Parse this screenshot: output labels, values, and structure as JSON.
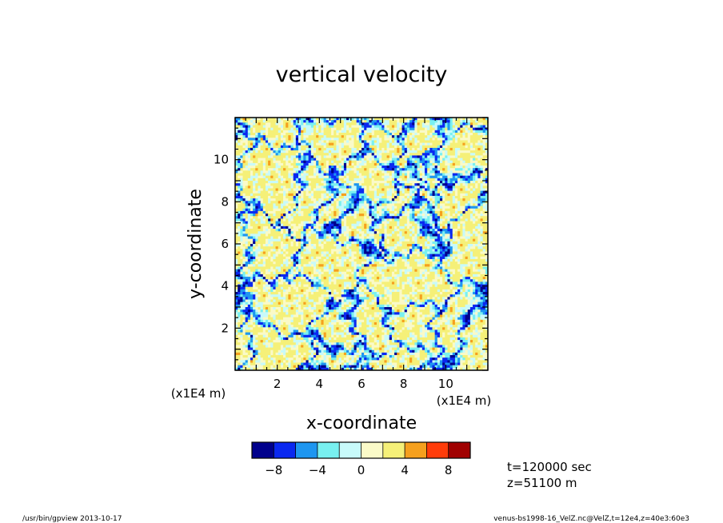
{
  "chart_data": {
    "type": "heatmap",
    "title": "vertical velocity",
    "xlabel": "x-coordinate",
    "ylabel": "y-coordinate",
    "xlim": [
      0,
      12
    ],
    "ylim": [
      0,
      12
    ],
    "x_ticks": [
      2,
      4,
      6,
      8,
      10
    ],
    "y_ticks": [
      2,
      4,
      6,
      8,
      10
    ],
    "x_unit": "(x1E4 m)",
    "y_unit": "(x1E4 m)",
    "colorbar": {
      "levels": [
        -10,
        -8,
        -6,
        -4,
        -2,
        0,
        2,
        4,
        6,
        8,
        10
      ],
      "tick_labels": [
        {
          "value": -8,
          "label": "−8"
        },
        {
          "value": -4,
          "label": "−4"
        },
        {
          "value": 0,
          "label": "0"
        },
        {
          "value": 4,
          "label": "4"
        },
        {
          "value": 8,
          "label": "8"
        }
      ],
      "colors": [
        "#00008c",
        "#0a28f0",
        "#1e96f0",
        "#78f0f0",
        "#c8fafa",
        "#fafac8",
        "#f5f078",
        "#f5a01e",
        "#ff3c0a",
        "#a00000"
      ]
    },
    "annotations": {
      "time": "t=120000 sec",
      "height": "z=51100 m"
    },
    "footer_left": "/usr/bin/gpview   2013-10-17",
    "footer_right": "venus-bs1998-16_VelZ.nc@VelZ,t=12e4,z=40e3:60e3"
  }
}
